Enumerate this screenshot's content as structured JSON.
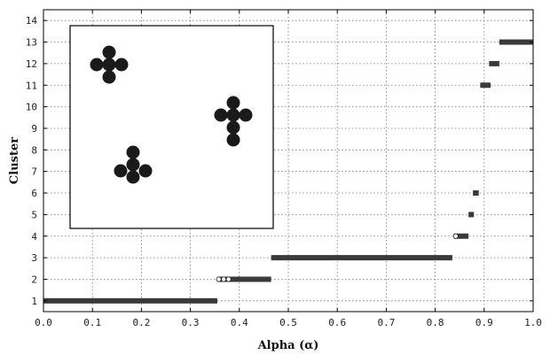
{
  "chart_data": {
    "type": "bar",
    "xlabel": "Alpha (α)",
    "ylabel": "Cluster",
    "xlim": [
      0.0,
      1.0
    ],
    "ylim": [
      0.5,
      14.5
    ],
    "x_ticks": [
      "0.0",
      "0.1",
      "0.2",
      "0.3",
      "0.4",
      "0.5",
      "0.6",
      "0.7",
      "0.8",
      "0.9",
      "1.0"
    ],
    "y_ticks": [
      "1",
      "2",
      "3",
      "4",
      "5",
      "6",
      "7",
      "8",
      "9",
      "10",
      "11",
      "12",
      "13",
      "14"
    ],
    "grid": true,
    "bar_color": "#3a3a3a",
    "segments": [
      {
        "cluster": 1,
        "start": 0.0,
        "end": 0.355
      },
      {
        "cluster": 2,
        "start": 0.355,
        "end": 0.465,
        "open_markers": [
          0.358,
          0.368,
          0.378
        ]
      },
      {
        "cluster": 3,
        "start": 0.465,
        "end": 0.835
      },
      {
        "cluster": 4,
        "start": 0.838,
        "end": 0.868,
        "open_markers": [
          0.842
        ]
      },
      {
        "cluster": 5,
        "start": 0.868,
        "end": 0.879
      },
      {
        "cluster": 6,
        "start": 0.877,
        "end": 0.889
      },
      {
        "cluster": 11,
        "start": 0.892,
        "end": 0.913
      },
      {
        "cluster": 12,
        "start": 0.91,
        "end": 0.931
      },
      {
        "cluster": 13,
        "start": 0.931,
        "end": 1.0
      }
    ],
    "inset": {
      "description_groups": [
        {
          "dots": [
            [
              0.0,
              0.0
            ],
            [
              -1,
              0
            ],
            [
              1,
              0
            ],
            [
              0,
              -1
            ],
            [
              0,
              1
            ]
          ]
        },
        {
          "dots": [
            [
              0,
              0
            ],
            [
              -1,
              0
            ],
            [
              1,
              0
            ],
            [
              0,
              -1
            ],
            [
              0,
              1
            ],
            [
              0,
              2
            ]
          ]
        },
        {
          "dots": [
            [
              0,
              0
            ],
            [
              -1,
              0.5
            ],
            [
              1,
              0.5
            ],
            [
              0,
              -1
            ],
            [
              0,
              1
            ]
          ]
        }
      ]
    }
  }
}
